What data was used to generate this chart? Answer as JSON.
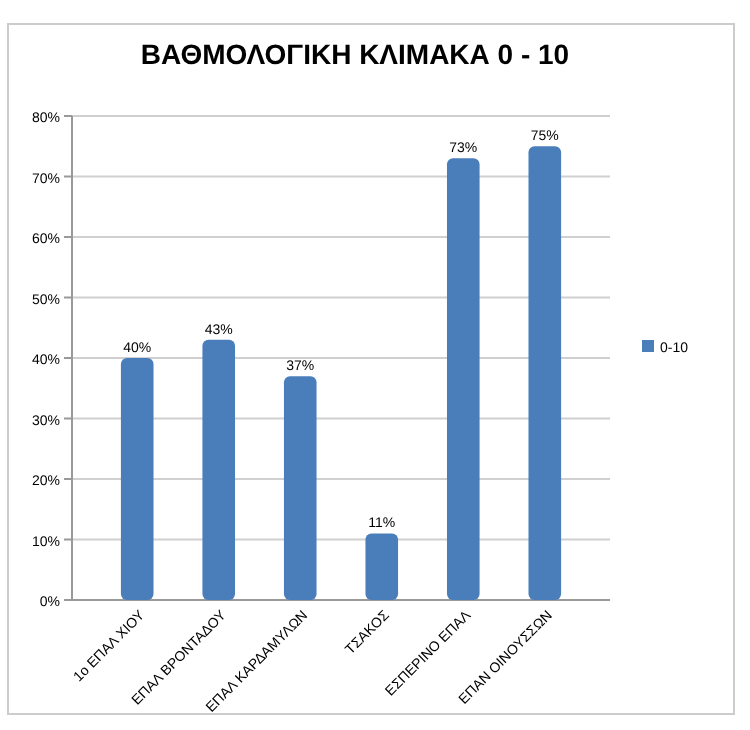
{
  "chart_data": {
    "type": "bar",
    "title": "ΒΑΘΜΟΛΟΓΙΚΗ ΚΛΙΜΑΚΑ 0 - 10",
    "categories": [
      "1ο ΕΠΑΛ ΧΙΟΥ",
      "ΕΠΑΛ ΒΡΟΝΤΑΔΟΥ",
      "ΕΠΑΛ ΚΑΡΔΑΜΥΛΩΝ",
      "ΤΣΑΚΟΣ",
      "ΕΣΠΕΡΙΝΟ ΕΠΑΛ",
      "ΕΠΑΝ ΟΙΝΟΥΣΣΩΝ"
    ],
    "series": [
      {
        "name": "0-10",
        "color": "#4a7ebb",
        "values": [
          40,
          43,
          37,
          11,
          73,
          75
        ],
        "value_labels": [
          "40%",
          "43%",
          "37%",
          "11%",
          "73%",
          "75%"
        ]
      }
    ],
    "ylim": [
      0,
      80
    ],
    "yticks": [
      {
        "value": 0,
        "label": "0%"
      },
      {
        "value": 10,
        "label": "10%"
      },
      {
        "value": 20,
        "label": "20%"
      },
      {
        "value": 30,
        "label": "30%"
      },
      {
        "value": 40,
        "label": "40%"
      },
      {
        "value": 50,
        "label": "50%"
      },
      {
        "value": 60,
        "label": "60%"
      },
      {
        "value": 70,
        "label": "70%"
      },
      {
        "value": 80,
        "label": "80%"
      }
    ],
    "grid": "y",
    "legend": "right"
  }
}
